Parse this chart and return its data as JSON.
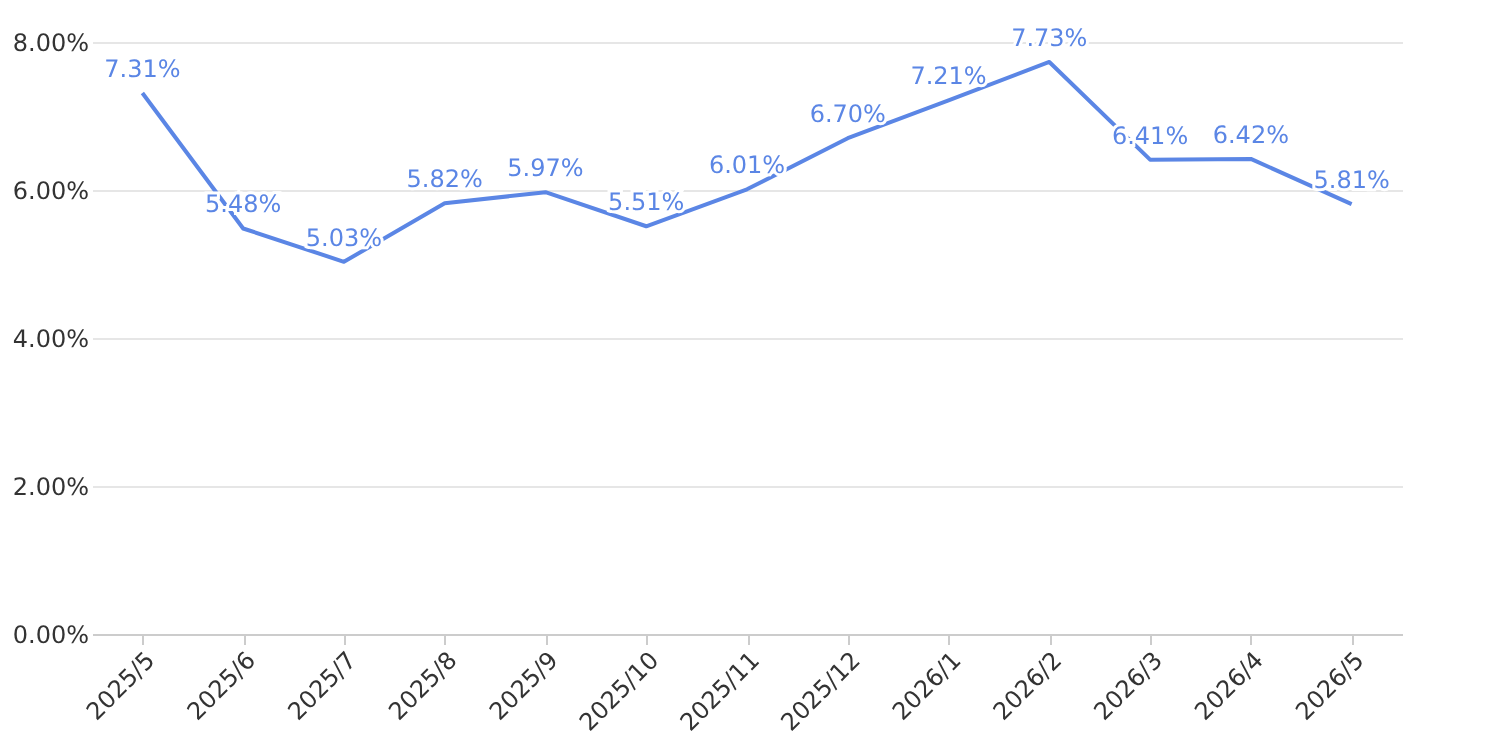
{
  "chart_data": {
    "type": "line",
    "categories": [
      "2025/5",
      "2025/6",
      "2025/7",
      "2025/8",
      "2025/9",
      "2025/10",
      "2025/11",
      "2025/12",
      "2026/1",
      "2026/2",
      "2026/3",
      "2026/4",
      "2026/5"
    ],
    "series": [
      {
        "color": "#5b86e5",
        "values": [
          7.31,
          5.48,
          5.03,
          5.82,
          5.97,
          5.51,
          6.01,
          6.7,
          7.21,
          7.73,
          6.41,
          6.42,
          5.81
        ],
        "value_labels": [
          "7.31%",
          "5.48%",
          "5.03%",
          "5.82%",
          "5.97%",
          "5.51%",
          "6.01%",
          "6.70%",
          "7.21%",
          "7.73%",
          "6.41%",
          "6.42%",
          "5.81%"
        ]
      }
    ],
    "ylim": [
      0,
      8
    ],
    "yticks": [
      {
        "value": 0,
        "label": "0.00%"
      },
      {
        "value": 2,
        "label": "2.00%"
      },
      {
        "value": 4,
        "label": "4.00%"
      },
      {
        "value": 6,
        "label": "6.00%"
      },
      {
        "value": 8,
        "label": "8.00%"
      }
    ],
    "grid": "y",
    "marker": "none",
    "line_style": "solid"
  }
}
